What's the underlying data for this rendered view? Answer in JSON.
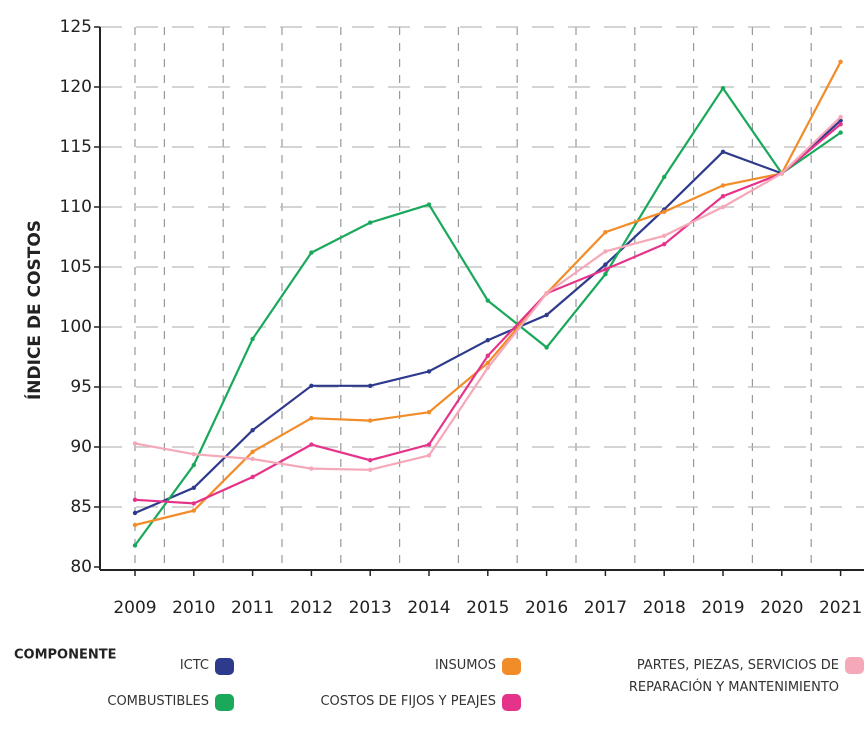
{
  "chart_data": {
    "type": "line",
    "y_label": "ÍNDICE DE COSTOS",
    "legend_title": "COMPONENTE",
    "categories": [
      "2009",
      "2010",
      "2011",
      "2012",
      "2013",
      "2014",
      "2015",
      "2016",
      "2017",
      "2018",
      "2019",
      "2020",
      "2021"
    ],
    "series": [
      {
        "name": "ICTC",
        "color": "#2e3a8c",
        "values": [
          84.5,
          86.6,
          91.4,
          95.1,
          95.1,
          96.3,
          98.9,
          101.0,
          105.2,
          109.8,
          114.6,
          112.8,
          117.2
        ]
      },
      {
        "name": "COMBUSTIBLES",
        "color": "#1aa85a",
        "values": [
          81.8,
          88.5,
          99.0,
          106.2,
          108.7,
          110.2,
          102.2,
          98.3,
          104.4,
          112.5,
          119.9,
          112.8,
          116.2
        ]
      },
      {
        "name": "INSUMOS",
        "color": "#f28c28",
        "values": [
          83.5,
          84.7,
          89.6,
          92.4,
          92.2,
          92.9,
          97.0,
          102.8,
          107.9,
          109.6,
          111.8,
          112.8,
          122.1
        ]
      },
      {
        "name": "COSTOS DE FIJOS Y PEAJES",
        "color": "#e6338a",
        "values": [
          85.6,
          85.3,
          87.5,
          90.2,
          88.9,
          90.2,
          97.6,
          102.8,
          104.8,
          106.9,
          110.9,
          112.8,
          116.9
        ]
      },
      {
        "name": "PARTES, PIEZAS, SERVICIOS DE REPARACIÓN Y MANTENIMIENTO",
        "color": "#f5a8b8",
        "values": [
          90.3,
          89.4,
          89.0,
          88.2,
          88.1,
          89.3,
          96.6,
          102.8,
          106.3,
          107.6,
          110.0,
          112.8,
          117.5
        ]
      }
    ],
    "ylim": [
      80,
      125
    ],
    "yticks": [
      80,
      85,
      90,
      95,
      100,
      105,
      110,
      115,
      120,
      125
    ],
    "grid": true
  }
}
